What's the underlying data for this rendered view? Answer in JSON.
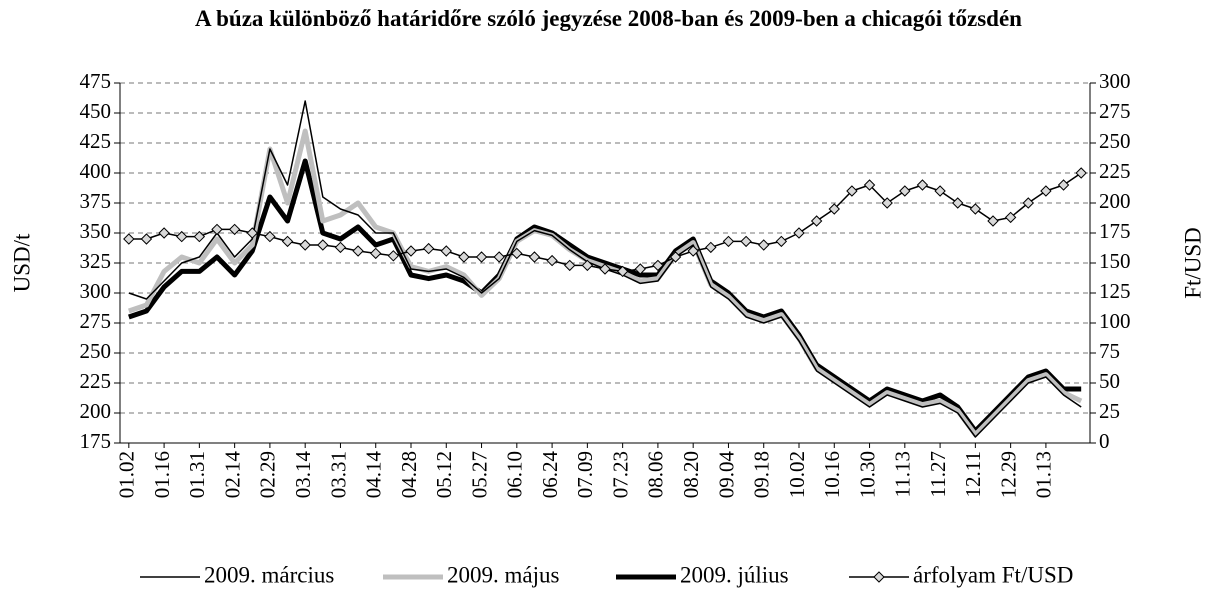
{
  "chart_data": {
    "type": "line",
    "title": "A búza különböző határidőre szóló jegyzése 2008-ban és 2009-ben a chicagói tőzsdén",
    "ylabel": "USD/t",
    "y2label": "Ft/USD",
    "categories": [
      "01.02",
      null,
      "01.16",
      null,
      "01.31",
      null,
      "02.14",
      null,
      "02.29",
      null,
      "03.14",
      null,
      "03.31",
      null,
      "04.14",
      null,
      "04.28",
      null,
      "05.12",
      null,
      "05.27",
      null,
      "06.10",
      null,
      "06.24",
      null,
      "07.09",
      null,
      "07.23",
      null,
      "08.06",
      null,
      "08.20",
      null,
      "09.04",
      null,
      "09.18",
      null,
      "10.02",
      null,
      "10.16",
      null,
      "10.30",
      null,
      "11.13",
      null,
      "11.27",
      null,
      "12.11",
      null,
      "12.29",
      null,
      "01.13",
      null,
      null
    ],
    "ylim": [
      175,
      475
    ],
    "yticks": [
      175,
      200,
      225,
      250,
      275,
      300,
      325,
      350,
      375,
      400,
      425,
      450,
      475
    ],
    "y2lim": [
      0,
      300
    ],
    "y2ticks": [
      0,
      25,
      50,
      75,
      100,
      125,
      150,
      175,
      200,
      225,
      250,
      275,
      300
    ],
    "grid": true,
    "legend": "bottom",
    "series": [
      {
        "name": "2009. március",
        "color": "#000000",
        "width": 1.5,
        "values": [
          300,
          295,
          310,
          325,
          330,
          350,
          330,
          345,
          420,
          390,
          460,
          380,
          370,
          365,
          350,
          350,
          320,
          318,
          320,
          313,
          300,
          312,
          343,
          352,
          348,
          336,
          326,
          320,
          315,
          308,
          310,
          330,
          340,
          305,
          295,
          280,
          275,
          280,
          260,
          235,
          225,
          215,
          205,
          215,
          210,
          205,
          208,
          200,
          180,
          195,
          210,
          225,
          230,
          215,
          205
        ]
      },
      {
        "name": "2009. május",
        "color": "#bfbfbf",
        "width": 5,
        "values": [
          285,
          290,
          318,
          330,
          325,
          345,
          325,
          340,
          420,
          375,
          435,
          360,
          365,
          375,
          355,
          350,
          322,
          318,
          322,
          315,
          298,
          312,
          343,
          352,
          348,
          336,
          327,
          322,
          317,
          310,
          312,
          332,
          342,
          307,
          297,
          282,
          277,
          282,
          262,
          237,
          227,
          217,
          207,
          217,
          212,
          207,
          210,
          202,
          182,
          197,
          212,
          227,
          232,
          217,
          210
        ]
      },
      {
        "name": "2009. július",
        "color": "#000000",
        "width": 5,
        "values": [
          280,
          285,
          305,
          318,
          318,
          330,
          315,
          335,
          380,
          360,
          410,
          350,
          345,
          355,
          340,
          345,
          315,
          312,
          315,
          310,
          300,
          315,
          345,
          355,
          350,
          340,
          330,
          325,
          320,
          315,
          315,
          335,
          345,
          310,
          300,
          285,
          280,
          285,
          265,
          240,
          230,
          220,
          210,
          220,
          215,
          210,
          215,
          205,
          185,
          200,
          215,
          230,
          235,
          220,
          220
        ]
      },
      {
        "name": "árfolyam Ft/USD",
        "color": "#000000",
        "marker_color": "#d9d9d9",
        "width": 1.5,
        "axis": "y2",
        "values": [
          170,
          170,
          175,
          172,
          172,
          178,
          178,
          175,
          172,
          168,
          165,
          165,
          163,
          160,
          158,
          156,
          160,
          162,
          160,
          155,
          155,
          155,
          158,
          155,
          152,
          148,
          148,
          145,
          143,
          145,
          148,
          155,
          160,
          163,
          168,
          168,
          165,
          168,
          175,
          185,
          195,
          210,
          215,
          200,
          210,
          215,
          210,
          200,
          195,
          185,
          188,
          200,
          210,
          215,
          225
        ]
      }
    ]
  }
}
